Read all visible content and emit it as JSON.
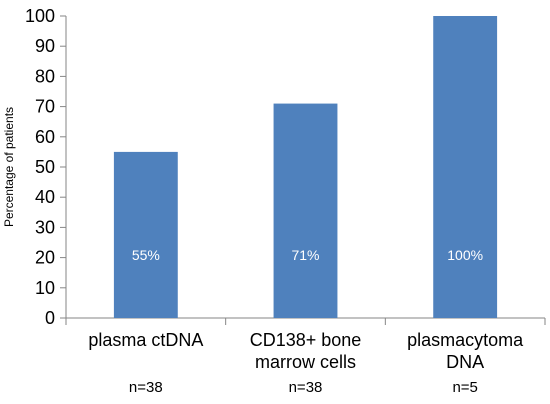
{
  "chart_data": {
    "type": "bar",
    "ylabel": "Percentage of patients",
    "ylim": [
      0,
      100
    ],
    "yticks": [
      0,
      10,
      20,
      30,
      40,
      50,
      60,
      70,
      80,
      90,
      100
    ],
    "categories": [
      [
        "plasma ctDNA"
      ],
      [
        "CD138+ bone",
        "marrow cells"
      ],
      [
        "plasmacytoma",
        "DNA"
      ]
    ],
    "values": [
      55,
      71,
      100
    ],
    "data_labels": [
      "55%",
      "71%",
      "100%"
    ],
    "sample_sizes": [
      "n=38",
      "n=38",
      "n=5"
    ],
    "bar_color": "#4F81BD",
    "grid": false,
    "legend": "none"
  }
}
